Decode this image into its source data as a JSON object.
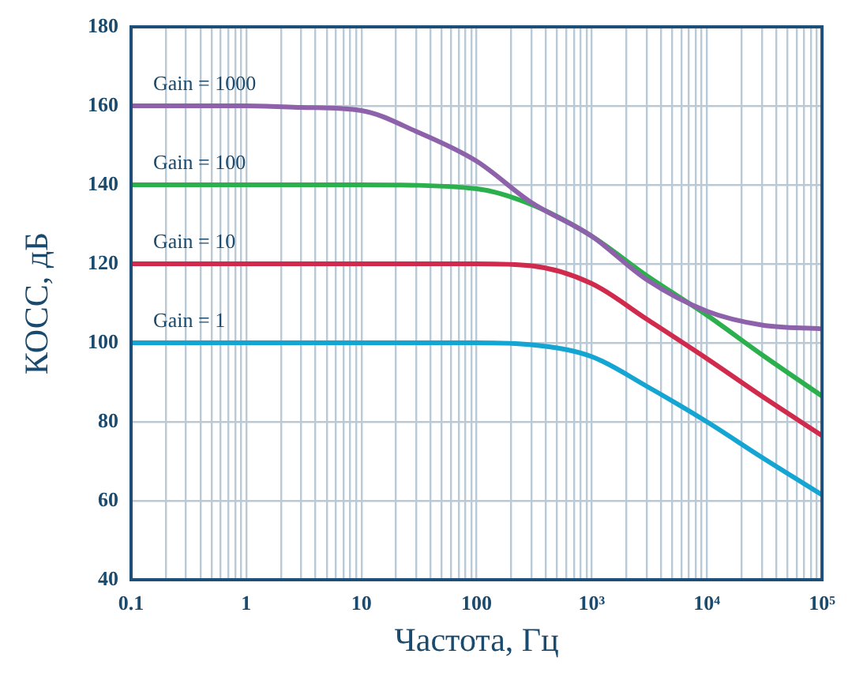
{
  "chart_data": {
    "type": "line",
    "xlabel": "Частота, Гц",
    "ylabel": "КОСС, дБ",
    "log": "x",
    "grid": true,
    "legend": false,
    "marker": "none",
    "line_style": "solid",
    "xlim": [
      0.1,
      100000
    ],
    "ylim": [
      40,
      180
    ],
    "yticks": [
      40,
      60,
      80,
      100,
      120,
      140,
      160,
      180
    ],
    "xticks": [
      0.1,
      {
        "value": 0.2,
        "label": null
      },
      {
        "value": 0.3,
        "label": null
      },
      {
        "value": 0.4,
        "label": null
      },
      {
        "value": 0.5,
        "label": null
      },
      {
        "value": 0.6,
        "label": null
      },
      {
        "value": 0.7,
        "label": null
      },
      {
        "value": 0.8,
        "label": null
      },
      {
        "value": 0.9,
        "label": null
      },
      1,
      {
        "value": 2,
        "label": null
      },
      {
        "value": 3,
        "label": null
      },
      {
        "value": 4,
        "label": null
      },
      {
        "value": 5,
        "label": null
      },
      {
        "value": 6,
        "label": null
      },
      {
        "value": 7,
        "label": null
      },
      {
        "value": 8,
        "label": null
      },
      {
        "value": 9,
        "label": null
      },
      10,
      {
        "value": 20,
        "label": null
      },
      {
        "value": 30,
        "label": null
      },
      {
        "value": 40,
        "label": null
      },
      {
        "value": 50,
        "label": null
      },
      {
        "value": 60,
        "label": null
      },
      {
        "value": 70,
        "label": null
      },
      {
        "value": 80,
        "label": null
      },
      {
        "value": 90,
        "label": null
      },
      100,
      {
        "value": 200,
        "label": null
      },
      {
        "value": 300,
        "label": null
      },
      {
        "value": 400,
        "label": null
      },
      {
        "value": 500,
        "label": null
      },
      {
        "value": 600,
        "label": null
      },
      {
        "value": 700,
        "label": null
      },
      {
        "value": 800,
        "label": null
      },
      {
        "value": 900,
        "label": null
      },
      {
        "value": 1000,
        "label": "10³"
      },
      {
        "value": 2000,
        "label": null
      },
      {
        "value": 3000,
        "label": null
      },
      {
        "value": 4000,
        "label": null
      },
      {
        "value": 5000,
        "label": null
      },
      {
        "value": 6000,
        "label": null
      },
      {
        "value": 7000,
        "label": null
      },
      {
        "value": 8000,
        "label": null
      },
      {
        "value": 9000,
        "label": null
      },
      {
        "value": 10000,
        "label": "10⁴"
      },
      {
        "value": 20000,
        "label": null
      },
      {
        "value": 30000,
        "label": null
      },
      {
        "value": 40000,
        "label": null
      },
      {
        "value": 50000,
        "label": null
      },
      {
        "value": 60000,
        "label": null
      },
      {
        "value": 70000,
        "label": null
      },
      {
        "value": 80000,
        "label": null
      },
      {
        "value": 90000,
        "label": null
      },
      {
        "value": 100000,
        "label": "10⁵"
      }
    ],
    "series": [
      {
        "name": "Gain = 1000",
        "color": "#8e62ab",
        "x": [
          0.1,
          1,
          3,
          10,
          30,
          100,
          300,
          1000,
          3000,
          10000,
          30000,
          100000
        ],
        "values": [
          160,
          160,
          159.6,
          158.8,
          153.5,
          146,
          135.5,
          127,
          116,
          108,
          104.5,
          103.5
        ]
      },
      {
        "name": "Gain = 100",
        "color": "#2bb04d",
        "x": [
          0.1,
          1,
          10,
          100,
          300,
          1000,
          3000,
          10000,
          30000,
          100000
        ],
        "values": [
          140,
          140,
          140,
          139,
          135,
          127,
          117,
          107,
          97,
          86.5
        ]
      },
      {
        "name": "Gain = 10",
        "color": "#d02a4c",
        "x": [
          0.1,
          1,
          10,
          100,
          300,
          1000,
          3000,
          10000,
          30000,
          100000
        ],
        "values": [
          120,
          120,
          120,
          120,
          119.5,
          115,
          106,
          96,
          86.5,
          76.5
        ]
      },
      {
        "name": "Gain = 1",
        "color": "#15a5d3",
        "x": [
          0.1,
          1,
          10,
          100,
          300,
          1000,
          3000,
          10000,
          30000,
          100000
        ],
        "values": [
          100,
          100,
          100,
          100,
          99.5,
          96.5,
          89,
          80,
          71,
          61.5
        ]
      }
    ]
  }
}
